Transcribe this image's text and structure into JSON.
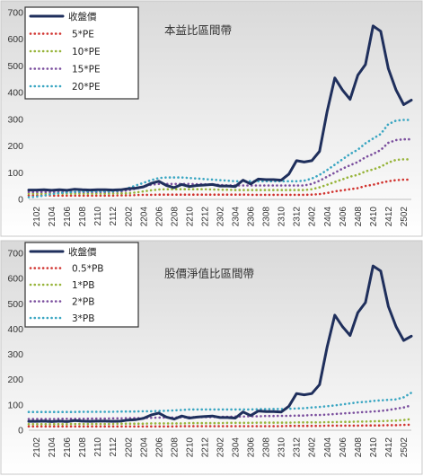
{
  "colors": {
    "price": "#1f2f5c",
    "band1": "#d1332f",
    "band2": "#97b43a",
    "band3": "#7b4f9e",
    "band4": "#3aa6c2",
    "panel_top": "#d9d9d9",
    "panel_bottom": "#ffffff"
  },
  "chart_data": [
    {
      "type": "line",
      "title": "本益比區間帶",
      "legend_position": "top-left",
      "grid": false,
      "ylim": [
        0,
        700
      ],
      "yticks": [
        0,
        100,
        200,
        300,
        400,
        500,
        600,
        700
      ],
      "x_tick_labels": [
        "2102",
        "2104",
        "2106",
        "2108",
        "2110",
        "2112",
        "2202",
        "2204",
        "2206",
        "2208",
        "2210",
        "2212",
        "2302",
        "2304",
        "2306",
        "2308",
        "2310",
        "2312",
        "2402",
        "2404",
        "2406",
        "2408",
        "2410",
        "2412",
        "2502"
      ],
      "x": [
        "2101",
        "2102",
        "2103",
        "2104",
        "2105",
        "2106",
        "2107",
        "2108",
        "2109",
        "2110",
        "2111",
        "2112",
        "2201",
        "2202",
        "2203",
        "2204",
        "2205",
        "2206",
        "2207",
        "2208",
        "2209",
        "2210",
        "2211",
        "2212",
        "2301",
        "2302",
        "2303",
        "2304",
        "2305",
        "2306",
        "2307",
        "2308",
        "2309",
        "2310",
        "2311",
        "2312",
        "2401",
        "2402",
        "2403",
        "2404",
        "2405",
        "2406",
        "2407",
        "2408",
        "2409",
        "2410",
        "2411",
        "2412",
        "2501",
        "2502",
        "2503"
      ],
      "series": [
        {
          "name": "收盤價",
          "style": "solid",
          "values": [
            35,
            35,
            36,
            34,
            36,
            34,
            38,
            36,
            35,
            36,
            36,
            35,
            36,
            40,
            42,
            47,
            60,
            68,
            52,
            44,
            56,
            48,
            52,
            54,
            56,
            50,
            50,
            48,
            72,
            58,
            76,
            74,
            74,
            72,
            95,
            145,
            140,
            145,
            180,
            330,
            455,
            410,
            375,
            465,
            505,
            650,
            630,
            490,
            410,
            355,
            372
          ]
        },
        {
          "name": "5*PE",
          "style": "dotted",
          "values": [
            15,
            15,
            15,
            14,
            14,
            14,
            14,
            14,
            14,
            14,
            14,
            14,
            15,
            15,
            16,
            17,
            17,
            18,
            18,
            18,
            18,
            18,
            18,
            18,
            18,
            18,
            18,
            18,
            18,
            17,
            17,
            17,
            17,
            17,
            17,
            17,
            17,
            18,
            20,
            24,
            30,
            34,
            38,
            42,
            50,
            55,
            62,
            68,
            72,
            74,
            74
          ]
        },
        {
          "name": "10*PE",
          "style": "dotted",
          "values": [
            22,
            22,
            22,
            22,
            22,
            22,
            22,
            22,
            22,
            22,
            22,
            22,
            23,
            23,
            26,
            30,
            34,
            37,
            38,
            38,
            38,
            38,
            38,
            38,
            37,
            36,
            36,
            35,
            35,
            35,
            35,
            35,
            35,
            35,
            35,
            35,
            35,
            38,
            45,
            55,
            65,
            75,
            85,
            92,
            105,
            112,
            122,
            138,
            148,
            150,
            150
          ]
        },
        {
          "name": "15*PE",
          "style": "dotted",
          "values": [
            28,
            28,
            28,
            28,
            28,
            28,
            28,
            28,
            28,
            28,
            28,
            29,
            30,
            34,
            40,
            47,
            55,
            58,
            58,
            58,
            58,
            58,
            57,
            57,
            56,
            54,
            53,
            52,
            52,
            52,
            52,
            52,
            52,
            52,
            52,
            52,
            52,
            58,
            70,
            85,
            100,
            115,
            128,
            140,
            158,
            170,
            185,
            212,
            222,
            225,
            225
          ]
        },
        {
          "name": "20*PE",
          "style": "dotted",
          "values": [
            8,
            10,
            14,
            20,
            24,
            26,
            28,
            30,
            30,
            30,
            30,
            30,
            33,
            42,
            52,
            62,
            72,
            80,
            82,
            82,
            82,
            80,
            78,
            76,
            74,
            72,
            70,
            68,
            68,
            68,
            68,
            68,
            68,
            68,
            68,
            68,
            70,
            78,
            92,
            110,
            130,
            150,
            170,
            186,
            210,
            228,
            245,
            282,
            295,
            298,
            298
          ]
        }
      ]
    },
    {
      "type": "line",
      "title": "股價淨值比區間帶",
      "legend_position": "top-left",
      "grid": false,
      "ylim": [
        0,
        700
      ],
      "yticks": [
        0,
        100,
        200,
        300,
        400,
        500,
        600,
        700
      ],
      "x_tick_labels": [
        "2102",
        "2104",
        "2106",
        "2108",
        "2110",
        "2112",
        "2202",
        "2204",
        "2206",
        "2208",
        "2210",
        "2212",
        "2302",
        "2304",
        "2306",
        "2308",
        "2310",
        "2312",
        "2402",
        "2404",
        "2406",
        "2408",
        "2410",
        "2412",
        "2502"
      ],
      "x": [
        "2101",
        "2102",
        "2103",
        "2104",
        "2105",
        "2106",
        "2107",
        "2108",
        "2109",
        "2110",
        "2111",
        "2112",
        "2201",
        "2202",
        "2203",
        "2204",
        "2205",
        "2206",
        "2207",
        "2208",
        "2209",
        "2210",
        "2211",
        "2212",
        "2301",
        "2302",
        "2303",
        "2304",
        "2305",
        "2306",
        "2307",
        "2308",
        "2309",
        "2310",
        "2311",
        "2312",
        "2401",
        "2402",
        "2403",
        "2404",
        "2405",
        "2406",
        "2407",
        "2408",
        "2409",
        "2410",
        "2411",
        "2412",
        "2501",
        "2502",
        "2503"
      ],
      "series": [
        {
          "name": "收盤價",
          "style": "solid",
          "values": [
            35,
            35,
            36,
            34,
            36,
            34,
            38,
            36,
            35,
            36,
            36,
            35,
            36,
            40,
            42,
            47,
            60,
            68,
            52,
            44,
            56,
            48,
            52,
            54,
            56,
            50,
            50,
            48,
            72,
            58,
            76,
            74,
            74,
            72,
            95,
            145,
            140,
            145,
            180,
            330,
            455,
            410,
            375,
            465,
            505,
            650,
            630,
            490,
            410,
            355,
            372
          ]
        },
        {
          "name": "0.5*PB",
          "style": "dotted",
          "values": [
            15,
            15,
            15,
            15,
            15,
            15,
            15,
            15,
            15,
            15,
            15,
            15,
            15,
            15,
            15,
            15,
            15,
            15,
            15,
            15,
            16,
            16,
            16,
            16,
            16,
            16,
            16,
            16,
            16,
            16,
            16,
            16,
            16,
            16,
            17,
            17,
            17,
            17,
            17,
            18,
            18,
            18,
            18,
            18,
            19,
            19,
            19,
            20,
            20,
            21,
            22
          ]
        },
        {
          "name": "1*PB",
          "style": "dotted",
          "values": [
            24,
            24,
            24,
            24,
            24,
            24,
            25,
            25,
            25,
            25,
            25,
            25,
            26,
            26,
            26,
            26,
            27,
            27,
            27,
            27,
            27,
            28,
            28,
            28,
            28,
            28,
            29,
            29,
            29,
            29,
            30,
            30,
            30,
            30,
            30,
            31,
            31,
            31,
            31,
            32,
            32,
            33,
            33,
            34,
            34,
            35,
            36,
            37,
            38,
            40,
            44
          ]
        },
        {
          "name": "2*PB",
          "style": "dotted",
          "values": [
            44,
            44,
            44,
            44,
            45,
            45,
            45,
            45,
            46,
            46,
            46,
            47,
            47,
            48,
            48,
            48,
            49,
            50,
            50,
            50,
            51,
            51,
            52,
            52,
            52,
            53,
            53,
            54,
            54,
            55,
            55,
            56,
            56,
            57,
            57,
            58,
            58,
            60,
            60,
            62,
            64,
            66,
            68,
            70,
            72,
            74,
            76,
            80,
            85,
            90,
            98
          ]
        },
        {
          "name": "3*PB",
          "style": "dotted",
          "values": [
            72,
            72,
            72,
            72,
            72,
            72,
            72,
            73,
            73,
            73,
            73,
            73,
            74,
            74,
            74,
            75,
            75,
            76,
            77,
            78,
            80,
            82,
            82,
            82,
            82,
            82,
            82,
            82,
            82,
            82,
            83,
            83,
            84,
            84,
            85,
            86,
            87,
            90,
            92,
            95,
            98,
            102,
            106,
            110,
            112,
            116,
            118,
            120,
            122,
            130,
            148
          ]
        }
      ]
    }
  ]
}
